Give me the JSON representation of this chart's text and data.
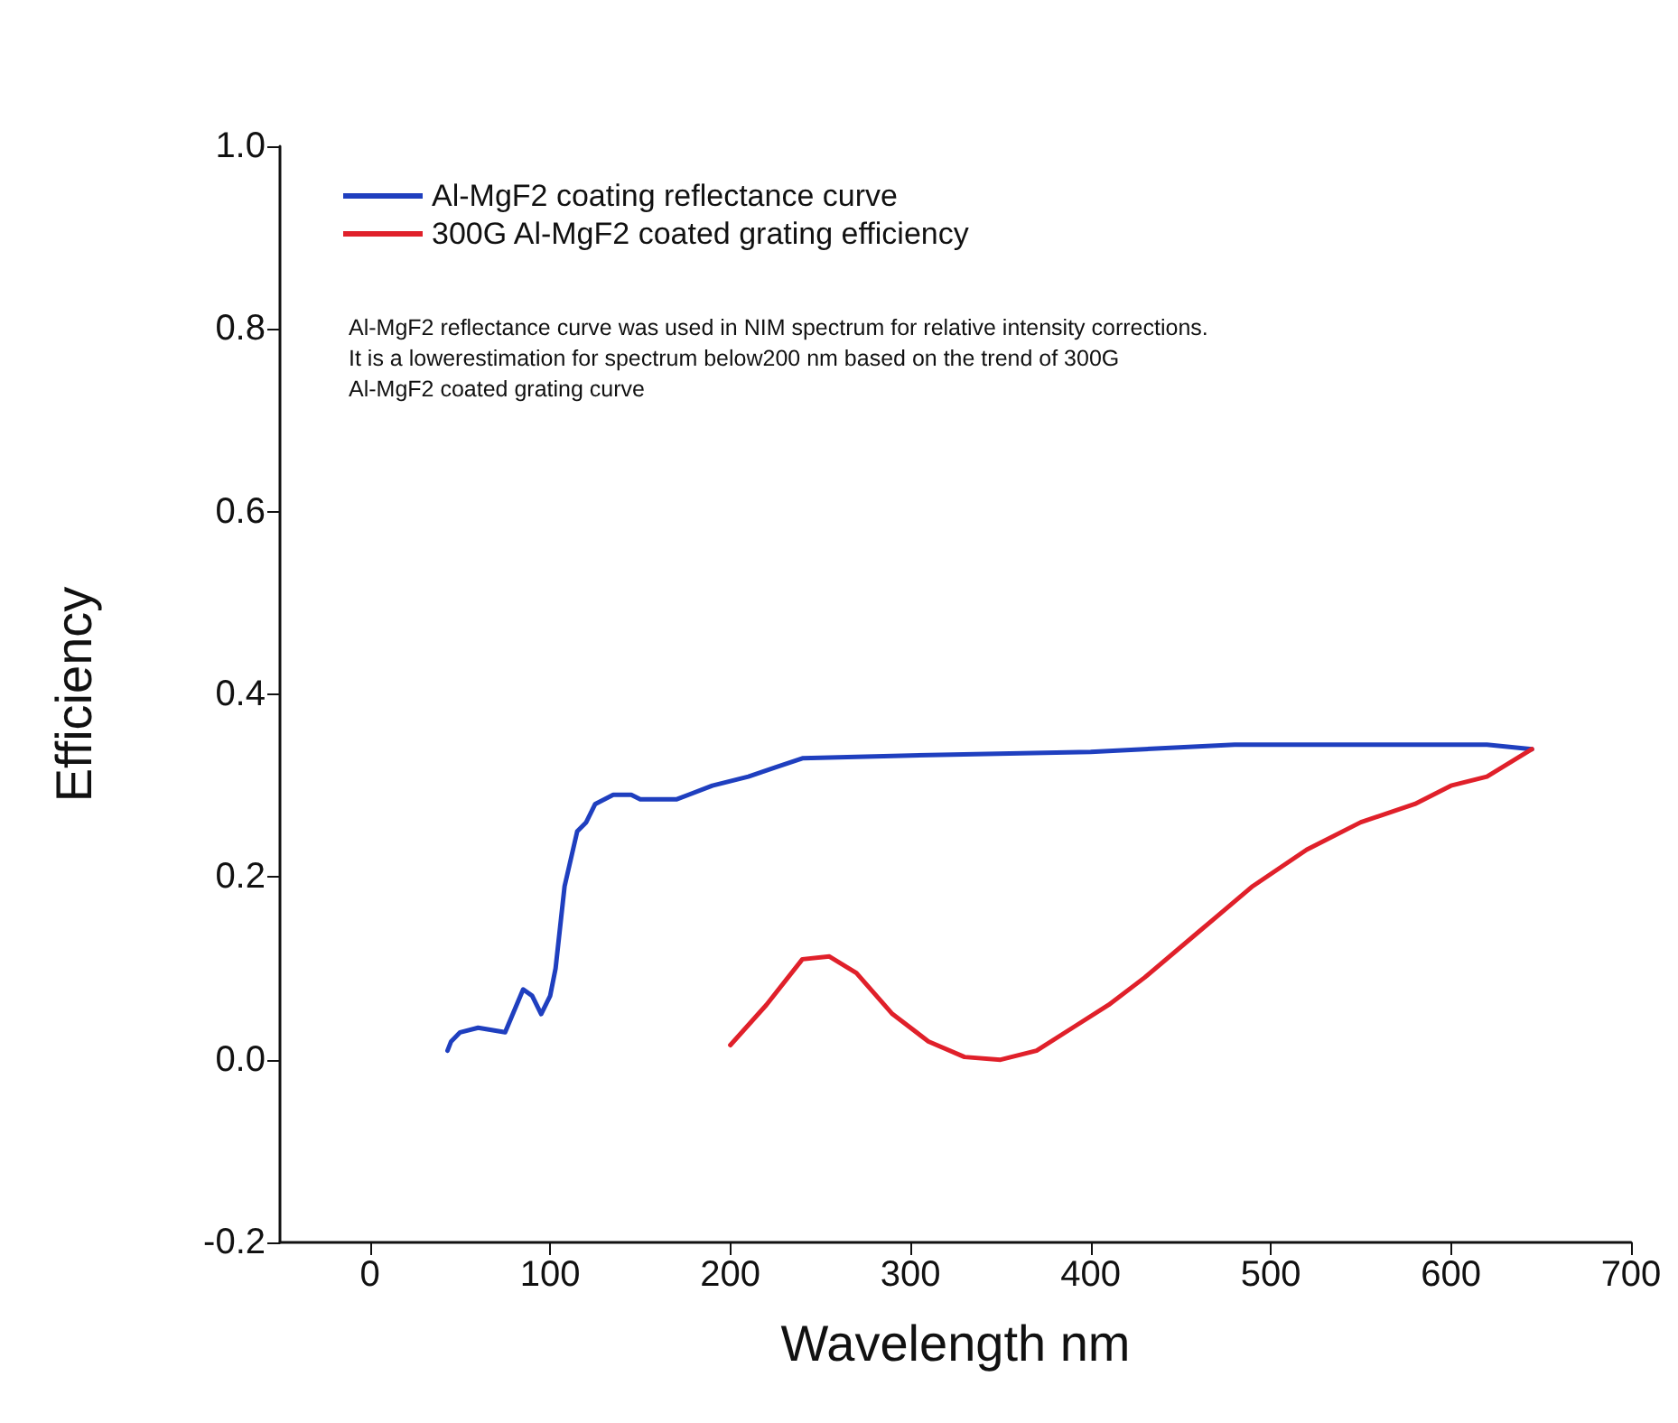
{
  "chart_data": {
    "type": "line",
    "xlabel": "Wavelength nm",
    "ylabel": "Efficiency",
    "xlim": [
      -50,
      700
    ],
    "xticks": [
      0,
      100,
      200,
      300,
      400,
      500,
      600,
      700
    ],
    "ylim": [
      -0.2,
      1.0
    ],
    "yticks": [
      {
        "value": -0.2,
        "label": "-0.2"
      },
      {
        "value": 0,
        "label": "0.0"
      },
      {
        "value": 0.2,
        "label": "0.2"
      },
      {
        "value": 0.4,
        "label": "0.4"
      },
      {
        "value": 0.6,
        "label": "0.6"
      },
      {
        "value": 0.8,
        "label": "0.8"
      },
      {
        "value": 1.0,
        "label": "1.0"
      }
    ],
    "grid": false,
    "legend": "top left",
    "marker": "none",
    "line_style": "solid",
    "annotations": [
      "Al-MgF2 reflectance curve was used in NIM spectrum for relative intensity corrections.\nIt is a lowerestimation for spectrum below200 nm based on the trend of 300G\nAl-MgF2 coated grating curve"
    ],
    "series": [
      {
        "name": "Al-MgF2 coating reflectance curve",
        "color": "#1f3fbf",
        "x": [
          43,
          45,
          50,
          60,
          75,
          85,
          90,
          95,
          100,
          103,
          108,
          115,
          120,
          125,
          135,
          145,
          150,
          170,
          190,
          200,
          210,
          225,
          240,
          300,
          400,
          480,
          600,
          620,
          645
        ],
        "values": [
          0.01,
          0.02,
          0.03,
          0.035,
          0.03,
          0.077,
          0.07,
          0.05,
          0.07,
          0.1,
          0.19,
          0.25,
          0.26,
          0.28,
          0.29,
          0.29,
          0.285,
          0.285,
          0.3,
          0.305,
          0.31,
          0.32,
          0.33,
          0.333,
          0.337,
          0.345,
          0.345,
          0.345,
          0.34
        ]
      },
      {
        "name": "300G Al-MgF2 coated grating efficiency",
        "color": "#e0202a",
        "x": [
          200,
          220,
          240,
          255,
          270,
          290,
          310,
          330,
          350,
          370,
          390,
          410,
          430,
          460,
          490,
          520,
          550,
          580,
          600,
          620,
          645
        ],
        "values": [
          0.016,
          0.06,
          0.11,
          0.113,
          0.095,
          0.05,
          0.02,
          0.003,
          0,
          0.01,
          0.035,
          0.06,
          0.09,
          0.14,
          0.19,
          0.23,
          0.26,
          0.28,
          0.3,
          0.31,
          0.34
        ]
      }
    ]
  }
}
